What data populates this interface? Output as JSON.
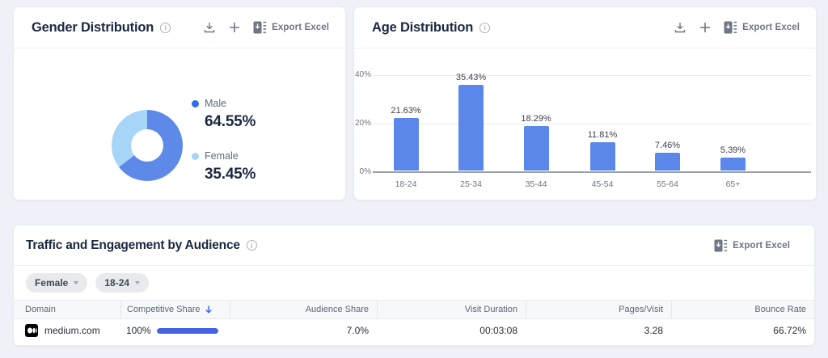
{
  "page": {
    "background": "#eef2f8"
  },
  "gender_card": {
    "title": "Gender Distribution",
    "actions": {
      "export_label": "Export Excel"
    },
    "legend": [
      {
        "label": "Male",
        "value": "64.55%",
        "color": "#2f6fed"
      },
      {
        "label": "Female",
        "value": "35.45%",
        "color": "#a7d5f8"
      }
    ]
  },
  "age_card": {
    "title": "Age Distribution",
    "actions": {
      "export_label": "Export Excel"
    },
    "y_ticks": [
      "40%",
      "20%",
      "0%"
    ],
    "bars": [
      {
        "label": "18-24",
        "value_label": "21.63%"
      },
      {
        "label": "25-34",
        "value_label": "35.43%"
      },
      {
        "label": "35-44",
        "value_label": "18.29%"
      },
      {
        "label": "45-54",
        "value_label": "11.81%"
      },
      {
        "label": "55-64",
        "value_label": "7.46%"
      },
      {
        "label": "65+",
        "value_label": "5.39%"
      }
    ]
  },
  "table_card": {
    "title": "Traffic and Engagement by Audience",
    "actions": {
      "export_label": "Export Excel"
    },
    "filters": [
      {
        "label": "Female"
      },
      {
        "label": "18-24"
      }
    ],
    "columns": [
      "Domain",
      "Competitive Share",
      "Audience Share",
      "Visit Duration",
      "Pages/Visit",
      "Bounce Rate"
    ],
    "sorted_column": "Competitive Share",
    "sort_direction": "desc",
    "rows": [
      {
        "domain": "medium.com",
        "competitive_share": "100%",
        "competitive_share_bar_pct": 100,
        "audience_share": "7.0%",
        "visit_duration": "00:03:08",
        "pages_per_visit": "3.28",
        "bounce_rate": "66.72%"
      }
    ]
  },
  "chart_data": [
    {
      "type": "pie",
      "title": "Gender Distribution",
      "labels": [
        "Male",
        "Female"
      ],
      "values": [
        64.55,
        35.45
      ],
      "colors": [
        "#5d89e8",
        "#a7d5f8"
      ],
      "donut": true,
      "legend_position": "right"
    },
    {
      "type": "bar",
      "title": "Age Distribution",
      "categories": [
        "18-24",
        "25-34",
        "35-44",
        "45-54",
        "55-64",
        "65+"
      ],
      "values": [
        21.63,
        35.43,
        18.29,
        11.81,
        7.46,
        5.39
      ],
      "xlabel": "",
      "ylabel": "%",
      "ylim": [
        0,
        40
      ],
      "y_ticks": [
        0,
        20,
        40
      ],
      "bar_color": "#5b87eb",
      "grid": true,
      "data_labels": true
    }
  ]
}
